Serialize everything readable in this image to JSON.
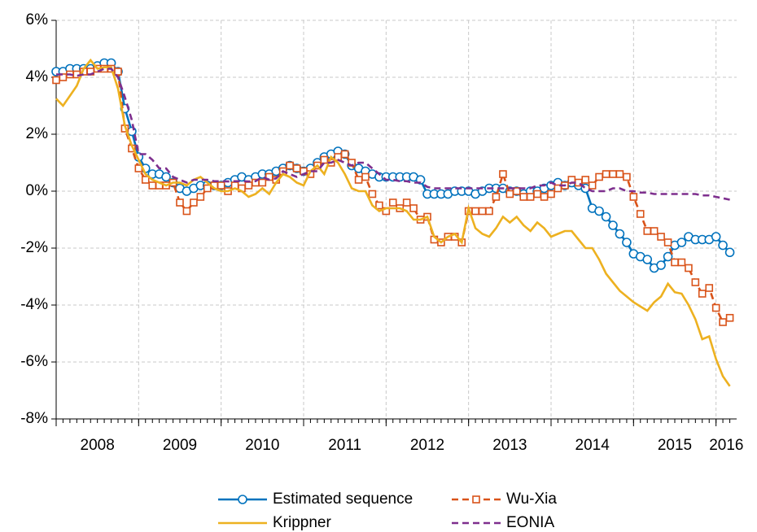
{
  "chart_data": {
    "type": "line",
    "x": [
      2008.0,
      2008.083,
      2008.167,
      2008.25,
      2008.333,
      2008.417,
      2008.5,
      2008.583,
      2008.667,
      2008.75,
      2008.833,
      2008.917,
      2009.0,
      2009.083,
      2009.167,
      2009.25,
      2009.333,
      2009.417,
      2009.5,
      2009.583,
      2009.667,
      2009.75,
      2009.833,
      2009.917,
      2010.0,
      2010.083,
      2010.167,
      2010.25,
      2010.333,
      2010.417,
      2010.5,
      2010.583,
      2010.667,
      2010.75,
      2010.833,
      2010.917,
      2011.0,
      2011.083,
      2011.167,
      2011.25,
      2011.333,
      2011.417,
      2011.5,
      2011.583,
      2011.667,
      2011.75,
      2011.833,
      2011.917,
      2012.0,
      2012.083,
      2012.167,
      2012.25,
      2012.333,
      2012.417,
      2012.5,
      2012.583,
      2012.667,
      2012.75,
      2012.833,
      2012.917,
      2013.0,
      2013.083,
      2013.167,
      2013.25,
      2013.333,
      2013.417,
      2013.5,
      2013.583,
      2013.667,
      2013.75,
      2013.833,
      2013.917,
      2014.0,
      2014.083,
      2014.167,
      2014.25,
      2014.333,
      2014.417,
      2014.5,
      2014.583,
      2014.667,
      2014.75,
      2014.833,
      2014.917,
      2015.0,
      2015.083,
      2015.167,
      2015.25,
      2015.333,
      2015.417,
      2015.5,
      2015.583,
      2015.667,
      2015.75,
      2015.833,
      2015.917,
      2016.0,
      2016.083,
      2016.167
    ],
    "series": [
      {
        "name": "Estimated sequence",
        "color": "#0072bd",
        "line_style": "solid",
        "marker": "circle",
        "values": [
          4.2,
          4.2,
          4.3,
          4.3,
          4.3,
          4.3,
          4.4,
          4.5,
          4.5,
          4.2,
          2.9,
          2.1,
          1.2,
          0.8,
          0.6,
          0.6,
          0.5,
          0.3,
          0.1,
          0.0,
          0.1,
          0.2,
          0.2,
          0.2,
          0.2,
          0.3,
          0.4,
          0.5,
          0.4,
          0.5,
          0.6,
          0.6,
          0.7,
          0.8,
          0.9,
          0.8,
          0.7,
          0.8,
          1.0,
          1.2,
          1.3,
          1.4,
          1.3,
          0.9,
          0.8,
          0.7,
          0.6,
          0.5,
          0.5,
          0.5,
          0.5,
          0.5,
          0.5,
          0.4,
          -0.1,
          -0.1,
          -0.1,
          -0.1,
          0.0,
          0.0,
          0.0,
          -0.1,
          0.0,
          0.1,
          0.1,
          0.1,
          0.0,
          0.0,
          -0.1,
          0.0,
          0.0,
          0.1,
          0.2,
          0.3,
          0.2,
          0.3,
          0.2,
          0.1,
          -0.6,
          -0.7,
          -0.9,
          -1.2,
          -1.5,
          -1.8,
          -2.2,
          -2.3,
          -2.4,
          -2.7,
          -2.6,
          -2.3,
          -1.9,
          -1.8,
          -1.6,
          -1.7,
          -1.7,
          -1.7,
          -1.6,
          -1.9,
          -2.15
        ]
      },
      {
        "name": "Wu-Xia",
        "color": "#d95319",
        "line_style": "dashed",
        "marker": "square",
        "values": [
          3.9,
          4.0,
          4.1,
          4.1,
          4.2,
          4.2,
          4.3,
          4.3,
          4.3,
          4.2,
          2.2,
          1.5,
          0.8,
          0.4,
          0.2,
          0.2,
          0.2,
          0.3,
          -0.4,
          -0.7,
          -0.4,
          -0.2,
          0.1,
          0.2,
          0.2,
          0.0,
          0.2,
          0.1,
          0.2,
          0.3,
          0.3,
          0.5,
          0.4,
          0.7,
          0.9,
          0.8,
          0.7,
          0.6,
          0.9,
          1.1,
          1.0,
          1.2,
          1.3,
          1.0,
          0.4,
          0.5,
          -0.1,
          -0.5,
          -0.7,
          -0.4,
          -0.6,
          -0.4,
          -0.6,
          -1.0,
          -0.9,
          -1.7,
          -1.8,
          -1.6,
          -1.6,
          -1.8,
          -0.7,
          -0.7,
          -0.7,
          -0.7,
          -0.2,
          0.6,
          -0.1,
          0.0,
          -0.2,
          -0.2,
          -0.1,
          -0.2,
          -0.1,
          0.1,
          0.2,
          0.4,
          0.3,
          0.4,
          0.2,
          0.5,
          0.6,
          0.6,
          0.6,
          0.5,
          -0.2,
          -0.8,
          -1.4,
          -1.4,
          -1.6,
          -1.8,
          -2.5,
          -2.5,
          -2.7,
          -3.2,
          -3.6,
          -3.4,
          -4.1,
          -4.6,
          -4.45
        ]
      },
      {
        "name": "Krippner",
        "color": "#edb120",
        "line_style": "solid",
        "marker": "none",
        "values": [
          3.25,
          3.0,
          3.35,
          3.7,
          4.3,
          4.6,
          4.3,
          4.35,
          4.35,
          3.6,
          2.3,
          1.6,
          1.1,
          0.6,
          0.4,
          0.3,
          0.2,
          0.3,
          0.3,
          0.2,
          0.4,
          0.5,
          0.3,
          0.1,
          0.0,
          0.0,
          0.1,
          0.0,
          -0.2,
          -0.1,
          0.1,
          -0.1,
          0.3,
          0.6,
          0.5,
          0.3,
          0.2,
          0.7,
          0.9,
          0.6,
          1.2,
          1.0,
          0.6,
          0.1,
          0.0,
          0.0,
          -0.5,
          -0.7,
          -0.6,
          -0.6,
          -0.6,
          -0.7,
          -1.0,
          -1.0,
          -0.9,
          -1.6,
          -1.8,
          -1.6,
          -1.5,
          -1.8,
          -0.6,
          -1.3,
          -1.5,
          -1.6,
          -1.3,
          -0.9,
          -1.1,
          -0.9,
          -1.2,
          -1.4,
          -1.1,
          -1.3,
          -1.6,
          -1.5,
          -1.4,
          -1.4,
          -1.7,
          -2.0,
          -2.0,
          -2.4,
          -2.9,
          -3.2,
          -3.5,
          -3.7,
          -3.9,
          -4.05,
          -4.2,
          -3.9,
          -3.7,
          -3.25,
          -3.55,
          -3.6,
          -4.0,
          -4.5,
          -5.2,
          -5.1,
          -5.9,
          -6.5,
          -6.85
        ]
      },
      {
        "name": "EONIA",
        "color": "#7e2f8e",
        "line_style": "dashed",
        "marker": "none",
        "values": [
          4.1,
          4.1,
          4.1,
          4.05,
          4.1,
          4.1,
          4.2,
          4.3,
          4.3,
          4.0,
          3.3,
          2.5,
          1.3,
          1.3,
          1.1,
          0.8,
          0.8,
          0.5,
          0.4,
          0.3,
          0.4,
          0.4,
          0.4,
          0.35,
          0.35,
          0.34,
          0.35,
          0.35,
          0.34,
          0.35,
          0.5,
          0.4,
          0.45,
          0.7,
          0.6,
          0.5,
          0.6,
          0.7,
          0.7,
          1.0,
          1.0,
          1.1,
          1.0,
          0.9,
          1.0,
          1.0,
          0.8,
          0.6,
          0.4,
          0.4,
          0.35,
          0.35,
          0.3,
          0.3,
          0.15,
          0.1,
          0.1,
          0.1,
          0.1,
          0.1,
          0.1,
          0.1,
          0.1,
          0.1,
          0.1,
          0.1,
          0.1,
          0.1,
          0.1,
          0.1,
          0.2,
          0.2,
          0.3,
          0.2,
          0.2,
          0.3,
          0.3,
          0.1,
          0.0,
          0.0,
          0.0,
          0.1,
          0.1,
          0.0,
          0.0,
          -0.05,
          -0.05,
          -0.1,
          -0.1,
          -0.1,
          -0.1,
          -0.1,
          -0.1,
          -0.1,
          -0.15,
          -0.15,
          -0.2,
          -0.25,
          -0.3
        ]
      }
    ],
    "xlim": [
      2008,
      2016.25
    ],
    "xticks": [
      2008,
      2009,
      2010,
      2011,
      2012,
      2013,
      2014,
      2015,
      2016
    ],
    "ylim": [
      -8,
      6
    ],
    "yticks": [
      {
        "value": -8,
        "label": "-8%"
      },
      {
        "value": -6,
        "label": "-6%"
      },
      {
        "value": -4,
        "label": "-4%"
      },
      {
        "value": -2,
        "label": "-2%"
      },
      {
        "value": 0,
        "label": "0%"
      },
      {
        "value": 2,
        "label": "2%"
      },
      {
        "value": 4,
        "label": "4%"
      },
      {
        "value": 6,
        "label": "6%"
      }
    ],
    "grid": true,
    "legend": "bottom"
  }
}
